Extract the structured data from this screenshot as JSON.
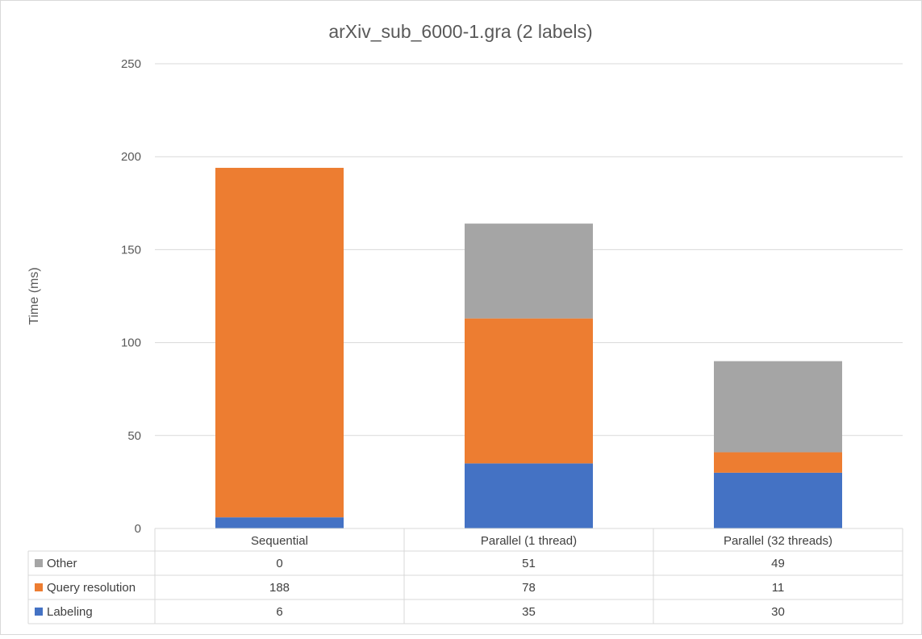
{
  "chart_data": {
    "type": "bar",
    "stacked": true,
    "title": "arXiv_sub_6000-1.gra (2 labels)",
    "xlabel": "",
    "ylabel": "Time (ms)",
    "ylim": [
      0,
      250
    ],
    "yticks": [
      0,
      50,
      100,
      150,
      200,
      250
    ],
    "grid": true,
    "legend": "data-table",
    "categories": [
      "Sequential",
      "Parallel (1 thread)",
      "Parallel (32 threads)"
    ],
    "series": [
      {
        "name": "Labeling",
        "color": "#4472c4",
        "values": [
          6,
          35,
          30
        ]
      },
      {
        "name": "Query resolution",
        "color": "#ed7d31",
        "values": [
          188,
          78,
          11
        ]
      },
      {
        "name": "Other",
        "color": "#a5a5a5",
        "values": [
          0,
          51,
          49
        ]
      }
    ],
    "table_row_order": [
      "Other",
      "Query resolution",
      "Labeling"
    ]
  }
}
